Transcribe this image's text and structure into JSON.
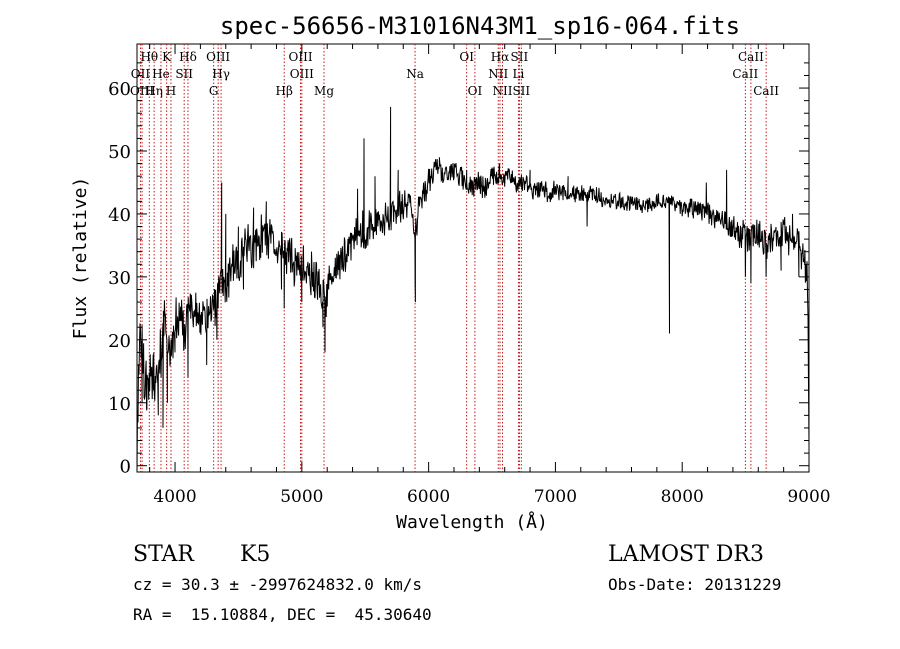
{
  "chart_data": {
    "type": "line",
    "title": "spec-56656-M31016N43M1_sp16-064.fits",
    "xlabel": "Wavelength (Å)",
    "ylabel": "Flux (relative)",
    "xlim": [
      3700,
      9000
    ],
    "ylim": [
      -1,
      67
    ],
    "x_ticks": [
      4000,
      5000,
      6000,
      7000,
      8000,
      9000
    ],
    "x_tick_labels": [
      "4000",
      "5000",
      "6000",
      "7000",
      "8000",
      "9000"
    ],
    "y_ticks": [
      0,
      10,
      20,
      30,
      40,
      50,
      60
    ],
    "y_tick_labels": [
      "0",
      "10",
      "20",
      "30",
      "40",
      "50",
      "60"
    ],
    "grid": false,
    "series": [
      {
        "name": "flux",
        "anchors": [
          [
            3700,
            0
          ],
          [
            3712,
            15
          ],
          [
            3730,
            21
          ],
          [
            3760,
            12
          ],
          [
            3800,
            16
          ],
          [
            3850,
            14
          ],
          [
            3880,
            19
          ],
          [
            3920,
            22
          ],
          [
            3950,
            17
          ],
          [
            3980,
            19
          ],
          [
            4020,
            24
          ],
          [
            4080,
            22
          ],
          [
            4120,
            25
          ],
          [
            4180,
            24
          ],
          [
            4230,
            23
          ],
          [
            4270,
            24
          ],
          [
            4300,
            25
          ],
          [
            4330,
            26
          ],
          [
            4360,
            30
          ],
          [
            4400,
            29
          ],
          [
            4450,
            31
          ],
          [
            4500,
            32
          ],
          [
            4550,
            35
          ],
          [
            4600,
            34
          ],
          [
            4650,
            35
          ],
          [
            4700,
            37
          ],
          [
            4750,
            36
          ],
          [
            4800,
            35
          ],
          [
            4850,
            34
          ],
          [
            4900,
            33
          ],
          [
            4950,
            32
          ],
          [
            5000,
            32
          ],
          [
            5050,
            31
          ],
          [
            5100,
            30
          ],
          [
            5150,
            28
          ],
          [
            5180,
            25
          ],
          [
            5200,
            28
          ],
          [
            5260,
            31
          ],
          [
            5300,
            33
          ],
          [
            5350,
            34
          ],
          [
            5400,
            36
          ],
          [
            5450,
            38
          ],
          [
            5500,
            37
          ],
          [
            5550,
            38
          ],
          [
            5600,
            39
          ],
          [
            5650,
            39
          ],
          [
            5700,
            40
          ],
          [
            5750,
            41
          ],
          [
            5800,
            41
          ],
          [
            5850,
            42
          ],
          [
            5893,
            37
          ],
          [
            5940,
            43
          ],
          [
            6000,
            45
          ],
          [
            6050,
            47
          ],
          [
            6100,
            46
          ],
          [
            6150,
            46
          ],
          [
            6200,
            47
          ],
          [
            6250,
            46
          ],
          [
            6300,
            45
          ],
          [
            6350,
            44
          ],
          [
            6400,
            45
          ],
          [
            6450,
            44
          ],
          [
            6500,
            46
          ],
          [
            6550,
            46
          ],
          [
            6600,
            46
          ],
          [
            6650,
            46
          ],
          [
            6700,
            45
          ],
          [
            6750,
            45
          ],
          [
            6800,
            44
          ],
          [
            6850,
            44
          ],
          [
            6900,
            44
          ],
          [
            6950,
            43
          ],
          [
            7000,
            44
          ],
          [
            7100,
            43
          ],
          [
            7200,
            43
          ],
          [
            7300,
            43
          ],
          [
            7400,
            42
          ],
          [
            7500,
            42
          ],
          [
            7600,
            42
          ],
          [
            7700,
            41
          ],
          [
            7800,
            42
          ],
          [
            7900,
            42
          ],
          [
            8000,
            41
          ],
          [
            8100,
            41
          ],
          [
            8200,
            40
          ],
          [
            8300,
            39
          ],
          [
            8400,
            38
          ],
          [
            8500,
            36
          ],
          [
            8560,
            36
          ],
          [
            8600,
            37
          ],
          [
            8660,
            35
          ],
          [
            8700,
            36
          ],
          [
            8800,
            37
          ],
          [
            8900,
            35
          ],
          [
            8960,
            34
          ],
          [
            8990,
            28
          ],
          [
            9000,
            5
          ]
        ],
        "spikes": [
          [
            3740,
            10
          ],
          [
            3778,
            9
          ],
          [
            3830,
            12
          ],
          [
            3868,
            8
          ],
          [
            3890,
            14
          ],
          [
            3905,
            6
          ],
          [
            3940,
            10
          ],
          [
            4000,
            18
          ],
          [
            4102,
            14
          ],
          [
            4250,
            16
          ],
          [
            4330,
            20
          ],
          [
            4368,
            45
          ],
          [
            4400,
            40
          ],
          [
            4500,
            38
          ],
          [
            4540,
            28
          ],
          [
            4620,
            41
          ],
          [
            4720,
            42
          ],
          [
            4840,
            28
          ],
          [
            4861,
            25
          ],
          [
            5000,
            26
          ],
          [
            5167,
            22
          ],
          [
            5183,
            18
          ],
          [
            5440,
            44
          ],
          [
            5490,
            52
          ],
          [
            5577,
            46
          ],
          [
            5700,
            57
          ],
          [
            5760,
            47
          ],
          [
            5893,
            29
          ],
          [
            5896,
            26
          ],
          [
            6085,
            49
          ],
          [
            6300,
            47
          ],
          [
            6560,
            48
          ],
          [
            6800,
            47
          ],
          [
            7100,
            46
          ],
          [
            7250,
            38
          ],
          [
            7900,
            21
          ],
          [
            8190,
            45
          ],
          [
            8350,
            47
          ],
          [
            8498,
            30
          ],
          [
            8542,
            29
          ],
          [
            8662,
            30
          ],
          [
            8780,
            31
          ],
          [
            8870,
            40
          ],
          [
            8920,
            30
          ]
        ],
        "noise": [
          [
            3700,
            5.0
          ],
          [
            4250,
            3.0
          ],
          [
            4450,
            3.5
          ],
          [
            5200,
            3.0
          ],
          [
            5800,
            2.2
          ],
          [
            6400,
            1.6
          ],
          [
            7000,
            1.3
          ],
          [
            8000,
            1.2
          ],
          [
            8500,
            2.2
          ],
          [
            9000,
            2.8
          ]
        ]
      }
    ],
    "line_markers": {
      "color": "#c00000",
      "lines": [
        {
          "label": "Hθ",
          "wavelength": 3797,
          "row": 1
        },
        {
          "label": "OII",
          "wavelength": 3727,
          "row": 2
        },
        {
          "label": "OIII",
          "wavelength": 3740,
          "row": 3
        },
        {
          "label": "He",
          "wavelength": 3889,
          "row": 2
        },
        {
          "label": "Hη",
          "wavelength": 3835,
          "row": 3
        },
        {
          "label": "K",
          "wavelength": 3934,
          "row": 1
        },
        {
          "label": "H",
          "wavelength": 3968,
          "row": 3
        },
        {
          "label": "SII",
          "wavelength": 4072,
          "row": 2
        },
        {
          "label": "Hδ",
          "wavelength": 4102,
          "row": 1
        },
        {
          "label": "OIII",
          "wavelength": 4340,
          "row": 1
        },
        {
          "label": "Hγ",
          "wavelength": 4363,
          "row": 2
        },
        {
          "label": "G",
          "wavelength": 4305,
          "row": 3
        },
        {
          "label": "Hβ",
          "wavelength": 4861,
          "row": 3
        },
        {
          "label": "OIII",
          "wavelength": 4990,
          "row": 1
        },
        {
          "label": "OIII",
          "wavelength": 5000,
          "row": 2
        },
        {
          "label": "Mg",
          "wavelength": 5175,
          "row": 3
        },
        {
          "label": "Na",
          "wavelength": 5893,
          "row": 2
        },
        {
          "label": "OI",
          "wavelength": 6300,
          "row": 1
        },
        {
          "label": "OI",
          "wavelength": 6365,
          "row": 3
        },
        {
          "label": "Hα",
          "wavelength": 6563,
          "row": 1
        },
        {
          "label": "NII",
          "wavelength": 6549,
          "row": 2
        },
        {
          "label": "NII",
          "wavelength": 6583,
          "row": 3
        },
        {
          "label": "SII",
          "wavelength": 6716,
          "row": 1
        },
        {
          "label": "Li",
          "wavelength": 6708,
          "row": 2
        },
        {
          "label": "SII",
          "wavelength": 6731,
          "row": 3
        },
        {
          "label": "CaII",
          "wavelength": 8542,
          "row": 1
        },
        {
          "label": "CaII",
          "wavelength": 8498,
          "row": 2
        },
        {
          "label": "CaII",
          "wavelength": 8662,
          "row": 3
        }
      ]
    }
  },
  "info": {
    "object_class": "STAR",
    "subclass": "K5",
    "survey": "LAMOST DR3",
    "cz": "cz = 30.3 ± -2997624832.0 km/s",
    "obs_date": "Obs-Date: 20131229",
    "coords": "RA =  15.10884, DEC =  45.30640"
  }
}
